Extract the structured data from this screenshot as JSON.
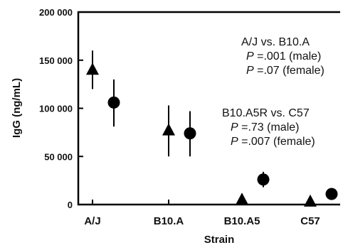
{
  "chart_data": {
    "type": "scatter",
    "xlabel": "Strain",
    "ylabel": "IgG (ng/mL)",
    "categories": [
      "A/J",
      "B10.A",
      "B10.A5",
      "C57"
    ],
    "ylim": [
      0,
      200000
    ],
    "yticks": [
      0,
      50000,
      100000,
      150000,
      200000
    ],
    "ytick_labels": [
      "0",
      "50 000",
      "100 000",
      "150 000",
      "200 000"
    ],
    "grid": false,
    "series": [
      {
        "marker": "triangle",
        "values": [
          140000,
          77000,
          5000,
          3000
        ],
        "err_low": [
          120000,
          50000,
          null,
          null
        ],
        "err_high": [
          160000,
          103000,
          null,
          null
        ]
      },
      {
        "marker": "circle",
        "values": [
          106000,
          74000,
          26000,
          11000
        ],
        "err_low": [
          81000,
          50000,
          18000,
          null
        ],
        "err_high": [
          130000,
          97000,
          34000,
          null
        ]
      }
    ],
    "annotations": [
      {
        "lines": [
          {
            "text": "A/J vs. B10.A"
          },
          {
            "p": "P",
            "rest": " =.001 (male)"
          },
          {
            "p": "P",
            "rest": " =.07 (female)"
          }
        ]
      },
      {
        "lines": [
          {
            "text": "B10.A5R vs. C57"
          },
          {
            "p": "P",
            "rest": " =.73  (male)"
          },
          {
            "p": "P",
            "rest": " =.007 (female)"
          }
        ]
      }
    ]
  }
}
